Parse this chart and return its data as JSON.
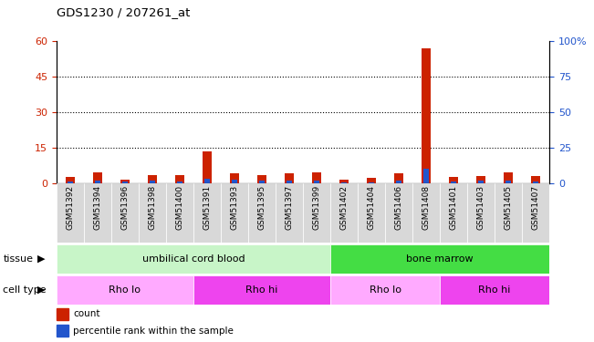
{
  "title": "GDS1230 / 207261_at",
  "samples": [
    "GSM51392",
    "GSM51394",
    "GSM51396",
    "GSM51398",
    "GSM51400",
    "GSM51391",
    "GSM51393",
    "GSM51395",
    "GSM51397",
    "GSM51399",
    "GSM51402",
    "GSM51404",
    "GSM51406",
    "GSM51408",
    "GSM51401",
    "GSM51403",
    "GSM51405",
    "GSM51407"
  ],
  "count_values": [
    2.5,
    4.5,
    1.5,
    3.5,
    3.5,
    13.5,
    4.0,
    3.5,
    4.0,
    4.5,
    1.5,
    2.0,
    4.0,
    57.0,
    2.5,
    3.0,
    4.5,
    3.0
  ],
  "percentile_values": [
    1.2,
    1.5,
    0.8,
    1.5,
    1.2,
    3.0,
    2.5,
    2.0,
    1.5,
    1.5,
    0.5,
    0.5,
    1.8,
    10.0,
    0.8,
    1.5,
    1.5,
    1.2
  ],
  "ylim_left": [
    0,
    60
  ],
  "ylim_right": [
    0,
    100
  ],
  "yticks_left": [
    0,
    15,
    30,
    45,
    60
  ],
  "yticks_right": [
    0,
    25,
    50,
    75,
    100
  ],
  "ytick_labels_left": [
    "0",
    "15",
    "30",
    "45",
    "60"
  ],
  "ytick_labels_right": [
    "0",
    "25",
    "50",
    "75",
    "100%"
  ],
  "tissue_groups": [
    {
      "label": "umbilical cord blood",
      "start": 0,
      "end": 9,
      "color": "#c8f5c8"
    },
    {
      "label": "bone marrow",
      "start": 10,
      "end": 17,
      "color": "#44dd44"
    }
  ],
  "cell_type_groups": [
    {
      "label": "Rho lo",
      "start": 0,
      "end": 4,
      "color": "#ffaaff"
    },
    {
      "label": "Rho hi",
      "start": 5,
      "end": 9,
      "color": "#ee44ee"
    },
    {
      "label": "Rho lo",
      "start": 10,
      "end": 13,
      "color": "#ffaaff"
    },
    {
      "label": "Rho hi",
      "start": 14,
      "end": 17,
      "color": "#ee44ee"
    }
  ],
  "count_color": "#cc2200",
  "percentile_color": "#2255cc",
  "bar_width": 0.35,
  "pct_bar_width": 0.18,
  "legend_count": "count",
  "legend_percentile": "percentile rank within the sample",
  "tissue_label": "tissue",
  "cell_type_label": "cell type",
  "xtick_bg": "#d8d8d8"
}
